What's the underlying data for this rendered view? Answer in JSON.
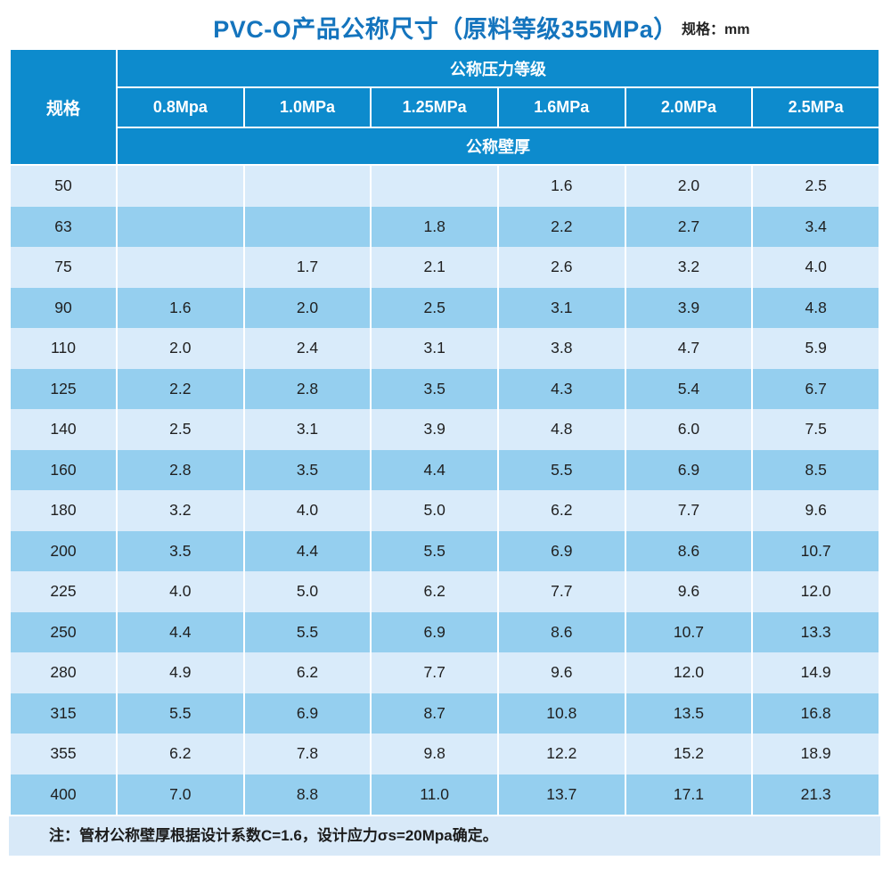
{
  "title": "PVC-O产品公称尺寸（原料等级355MPa）",
  "unit_label": "规格：mm",
  "table": {
    "spec_header": "规格",
    "pressure_group_header": "公称压力等级",
    "wall_thickness_header": "公称壁厚",
    "pressure_columns": [
      "0.8Mpa",
      "1.0MPa",
      "1.25MPa",
      "1.6MPa",
      "2.0MPa",
      "2.5MPa"
    ],
    "rows": [
      {
        "spec": "50",
        "values": [
          "",
          "",
          "",
          "1.6",
          "2.0",
          "2.5"
        ]
      },
      {
        "spec": "63",
        "values": [
          "",
          "",
          "1.8",
          "2.2",
          "2.7",
          "3.4"
        ]
      },
      {
        "spec": "75",
        "values": [
          "",
          "1.7",
          "2.1",
          "2.6",
          "3.2",
          "4.0"
        ]
      },
      {
        "spec": "90",
        "values": [
          "1.6",
          "2.0",
          "2.5",
          "3.1",
          "3.9",
          "4.8"
        ]
      },
      {
        "spec": "110",
        "values": [
          "2.0",
          "2.4",
          "3.1",
          "3.8",
          "4.7",
          "5.9"
        ]
      },
      {
        "spec": "125",
        "values": [
          "2.2",
          "2.8",
          "3.5",
          "4.3",
          "5.4",
          "6.7"
        ]
      },
      {
        "spec": "140",
        "values": [
          "2.5",
          "3.1",
          "3.9",
          "4.8",
          "6.0",
          "7.5"
        ]
      },
      {
        "spec": "160",
        "values": [
          "2.8",
          "3.5",
          "4.4",
          "5.5",
          "6.9",
          "8.5"
        ]
      },
      {
        "spec": "180",
        "values": [
          "3.2",
          "4.0",
          "5.0",
          "6.2",
          "7.7",
          "9.6"
        ]
      },
      {
        "spec": "200",
        "values": [
          "3.5",
          "4.4",
          "5.5",
          "6.9",
          "8.6",
          "10.7"
        ]
      },
      {
        "spec": "225",
        "values": [
          "4.0",
          "5.0",
          "6.2",
          "7.7",
          "9.6",
          "12.0"
        ]
      },
      {
        "spec": "250",
        "values": [
          "4.4",
          "5.5",
          "6.9",
          "8.6",
          "10.7",
          "13.3"
        ]
      },
      {
        "spec": "280",
        "values": [
          "4.9",
          "6.2",
          "7.7",
          "9.6",
          "12.0",
          "14.9"
        ]
      },
      {
        "spec": "315",
        "values": [
          "5.5",
          "6.9",
          "8.7",
          "10.8",
          "13.5",
          "16.8"
        ]
      },
      {
        "spec": "355",
        "values": [
          "6.2",
          "7.8",
          "9.8",
          "12.2",
          "15.2",
          "18.9"
        ]
      },
      {
        "spec": "400",
        "values": [
          "7.0",
          "8.8",
          "11.0",
          "13.7",
          "17.1",
          "21.3"
        ]
      }
    ]
  },
  "note": "注：管材公称壁厚根据设计系数C=1.6，设计应力σs=20Mpa确定。",
  "colors": {
    "header_blue": "#0d8bcd",
    "row_light": "#d9ebfa",
    "row_dark": "#95cfef",
    "note_background": "#d8e9f8",
    "title_blue": "#1474bd",
    "text_dark": "#1f1f1f"
  }
}
